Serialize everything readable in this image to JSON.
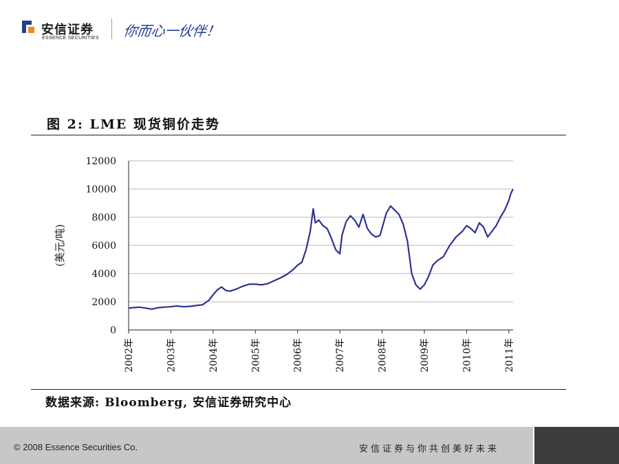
{
  "header": {
    "logo_cn": "安信证券",
    "logo_en": "ESSENCE SECURITIES",
    "slogan": "你而心一伙伴！",
    "brand_blue": "#1f3f8f"
  },
  "figure": {
    "title": "图 2: LME 现货铜价走势",
    "source": "数据来源: Bloomberg, 安信证券研究中心"
  },
  "chart_data": {
    "type": "line",
    "title": "",
    "ylabel": "(美元/吨)",
    "xlabel": "",
    "ylim": [
      0,
      12000
    ],
    "yticks": [
      "12000",
      "10000",
      "8000",
      "6000",
      "4000",
      "2000",
      "0"
    ],
    "xlim": [
      2002.0,
      2011.1
    ],
    "xticks": [
      "2002年",
      "2003年",
      "2004年",
      "2005年",
      "2006年",
      "2007年",
      "2008年",
      "2009年",
      "2010年",
      "2011年"
    ],
    "grid": "horizontal",
    "line_color": "#2e3192",
    "series": [
      {
        "x": [
          2002.0,
          2002.1,
          2002.25,
          2002.4,
          2002.55,
          2002.7,
          2002.85,
          2003.0,
          2003.15,
          2003.3,
          2003.45,
          2003.6,
          2003.75,
          2003.9,
          2004.0,
          2004.1,
          2004.2,
          2004.3,
          2004.4,
          2004.55,
          2004.7,
          2004.85,
          2005.0,
          2005.15,
          2005.3,
          2005.45,
          2005.6,
          2005.75,
          2005.9,
          2006.0,
          2006.1,
          2006.2,
          2006.3,
          2006.37,
          2006.42,
          2006.5,
          2006.6,
          2006.7,
          2006.8,
          2006.9,
          2007.0,
          2007.05,
          2007.15,
          2007.25,
          2007.35,
          2007.45,
          2007.55,
          2007.65,
          2007.75,
          2007.85,
          2007.95,
          2008.1,
          2008.2,
          2008.3,
          2008.4,
          2008.5,
          2008.6,
          2008.7,
          2008.75,
          2008.8,
          2008.9,
          2009.0,
          2009.1,
          2009.2,
          2009.3,
          2009.45,
          2009.6,
          2009.75,
          2009.9,
          2010.0,
          2010.1,
          2010.2,
          2010.3,
          2010.4,
          2010.5,
          2010.6,
          2010.7,
          2010.8,
          2010.9,
          2011.0,
          2011.05,
          2011.1
        ],
        "y": [
          1550,
          1580,
          1620,
          1550,
          1480,
          1580,
          1620,
          1650,
          1700,
          1650,
          1680,
          1730,
          1790,
          2100,
          2500,
          2850,
          3050,
          2800,
          2750,
          2900,
          3100,
          3250,
          3250,
          3200,
          3300,
          3500,
          3700,
          3950,
          4300,
          4600,
          4800,
          5700,
          7000,
          8600,
          7600,
          7800,
          7400,
          7200,
          6500,
          5700,
          5400,
          6700,
          7700,
          8100,
          7800,
          7300,
          8200,
          7200,
          6800,
          6600,
          6700,
          8300,
          8800,
          8500,
          8200,
          7500,
          6300,
          4000,
          3600,
          3200,
          2900,
          3200,
          3800,
          4600,
          4900,
          5200,
          6000,
          6600,
          7000,
          7400,
          7200,
          6900,
          7600,
          7300,
          6600,
          7000,
          7400,
          8000,
          8500,
          9200,
          9700,
          10000
        ]
      }
    ]
  },
  "footer": {
    "copyright": "© 2008 Essence Securities Co.",
    "slogan": "安信证券与你共创美好未来"
  }
}
